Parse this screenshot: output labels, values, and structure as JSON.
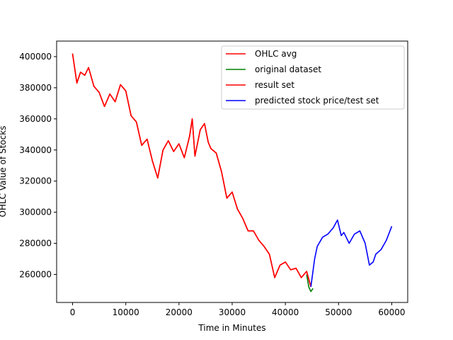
{
  "chart_data": {
    "type": "line",
    "title": "",
    "xlabel": "Time in Minutes",
    "ylabel": "OHLC Value of Stocks",
    "xlim": [
      -3000,
      63000
    ],
    "ylim": [
      242000,
      410000
    ],
    "xticks": [
      0,
      10000,
      20000,
      30000,
      40000,
      50000,
      60000
    ],
    "xtick_labels": [
      "0",
      "10000",
      "20000",
      "30000",
      "40000",
      "50000",
      "60000"
    ],
    "yticks": [
      260000,
      280000,
      300000,
      320000,
      340000,
      360000,
      380000,
      400000
    ],
    "ytick_labels": [
      "260000",
      "280000",
      "300000",
      "320000",
      "340000",
      "360000",
      "380000",
      "400000"
    ],
    "grid": false,
    "legend_position": "top-right",
    "series": [
      {
        "name": "OHLC avg",
        "color": "#ff0000",
        "x": [
          0,
          800,
          1500,
          2300,
          3000,
          4000,
          5000,
          6000,
          7000,
          8000,
          9000,
          10000,
          11000,
          12000,
          13000,
          14000,
          15000,
          16000,
          17000,
          18000,
          19000,
          20000,
          21000,
          22000,
          22500,
          23000,
          24000,
          24800,
          25500,
          26000,
          27000,
          28000,
          29000,
          30000,
          31000,
          32000,
          33000,
          34000,
          35000,
          36000,
          37000,
          38000,
          39000,
          40000,
          41000,
          42000,
          43000,
          44000,
          44800
        ],
        "y": [
          402000,
          383000,
          390000,
          388000,
          393000,
          381000,
          377000,
          368000,
          376000,
          371000,
          382000,
          378000,
          362000,
          358000,
          343000,
          347000,
          333000,
          322000,
          340000,
          346000,
          339000,
          344000,
          335000,
          349000,
          360000,
          336000,
          353000,
          357000,
          345000,
          341000,
          338000,
          326000,
          309000,
          313000,
          302000,
          296000,
          288000,
          288000,
          282000,
          278000,
          273000,
          258000,
          266000,
          268000,
          263000,
          264000,
          258000,
          262000,
          252000
        ]
      },
      {
        "name": "original dataset",
        "color": "#008000",
        "x": [
          44000,
          44400,
          44800,
          45200
        ],
        "y": [
          260000,
          252000,
          249000,
          251000
        ]
      },
      {
        "name": "result set",
        "color": "#ff0000",
        "x": [
          0,
          800,
          1500,
          2300,
          3000,
          4000,
          5000,
          6000,
          7000,
          8000,
          9000,
          10000,
          11000,
          12000,
          13000,
          14000,
          15000,
          16000,
          17000,
          18000,
          19000,
          20000,
          21000,
          22000,
          22500,
          23000,
          24000,
          24800,
          25500,
          26000,
          27000,
          28000,
          29000,
          30000,
          31000,
          32000,
          33000,
          34000,
          35000,
          36000,
          37000,
          38000,
          39000,
          40000,
          41000,
          42000,
          43000,
          44000,
          44800
        ],
        "y": [
          402000,
          383000,
          390000,
          388000,
          393000,
          381000,
          377000,
          368000,
          376000,
          371000,
          382000,
          378000,
          362000,
          358000,
          343000,
          347000,
          333000,
          322000,
          340000,
          346000,
          339000,
          344000,
          335000,
          349000,
          360000,
          336000,
          353000,
          357000,
          345000,
          341000,
          338000,
          326000,
          309000,
          313000,
          302000,
          296000,
          288000,
          288000,
          282000,
          278000,
          273000,
          258000,
          266000,
          268000,
          263000,
          264000,
          258000,
          262000,
          252000
        ]
      },
      {
        "name": "predicted stock price/test set",
        "color": "#0000ff",
        "x": [
          44800,
          45500,
          46000,
          47000,
          48000,
          49000,
          49800,
          50500,
          51000,
          52000,
          53000,
          54000,
          55000,
          55800,
          56500,
          57000,
          58000,
          59000,
          60000
        ],
        "y": [
          252000,
          270000,
          278000,
          284000,
          286000,
          290000,
          295000,
          285000,
          287000,
          280000,
          286000,
          288000,
          280000,
          266000,
          268000,
          273000,
          276000,
          282000,
          291000
        ]
      }
    ]
  }
}
